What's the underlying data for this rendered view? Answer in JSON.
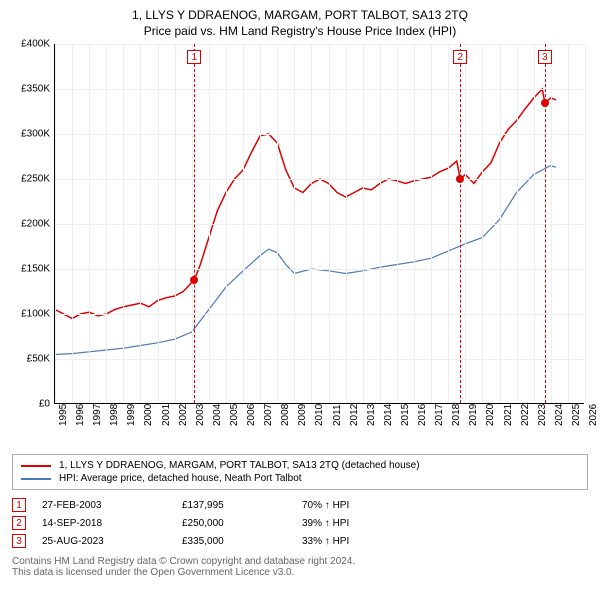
{
  "title": "1, LLYS Y DDRAENOG, MARGAM, PORT TALBOT, SA13 2TQ",
  "subtitle": "Price paid vs. HM Land Registry's House Price Index (HPI)",
  "chart": {
    "type": "line",
    "background_color": "#ffffff",
    "grid_color": "#eeeeee",
    "axis_color": "#000000",
    "ylim": [
      0,
      400000
    ],
    "ytick_step": 50000,
    "yticks_labels": [
      "£0",
      "£50K",
      "£100K",
      "£150K",
      "£200K",
      "£250K",
      "£300K",
      "£350K",
      "£400K"
    ],
    "x_years": [
      1995,
      1996,
      1997,
      1998,
      1999,
      2000,
      2001,
      2002,
      2003,
      2004,
      2005,
      2006,
      2007,
      2008,
      2009,
      2010,
      2011,
      2012,
      2013,
      2014,
      2015,
      2016,
      2017,
      2018,
      2019,
      2020,
      2021,
      2022,
      2023,
      2024,
      2025,
      2026
    ],
    "series": [
      {
        "name": "1, LLYS Y DDRAENOG, MARGAM, PORT TALBOT, SA13 2TQ (detached house)",
        "color": "#dd0000",
        "line_width": 1.5,
        "data": [
          [
            1995.0,
            105000
          ],
          [
            1995.5,
            100000
          ],
          [
            1996.0,
            95000
          ],
          [
            1996.5,
            100000
          ],
          [
            1997.0,
            102000
          ],
          [
            1997.5,
            98000
          ],
          [
            1998.0,
            100000
          ],
          [
            1998.5,
            105000
          ],
          [
            1999.0,
            108000
          ],
          [
            1999.5,
            110000
          ],
          [
            2000.0,
            112000
          ],
          [
            2000.5,
            108000
          ],
          [
            2001.0,
            115000
          ],
          [
            2001.5,
            118000
          ],
          [
            2002.0,
            120000
          ],
          [
            2002.5,
            125000
          ],
          [
            2003.0,
            135000
          ],
          [
            2003.15,
            137995
          ],
          [
            2003.5,
            155000
          ],
          [
            2004.0,
            185000
          ],
          [
            2004.5,
            215000
          ],
          [
            2005.0,
            235000
          ],
          [
            2005.5,
            250000
          ],
          [
            2006.0,
            260000
          ],
          [
            2006.5,
            280000
          ],
          [
            2007.0,
            298000
          ],
          [
            2007.5,
            300000
          ],
          [
            2008.0,
            290000
          ],
          [
            2008.5,
            260000
          ],
          [
            2009.0,
            240000
          ],
          [
            2009.5,
            235000
          ],
          [
            2010.0,
            245000
          ],
          [
            2010.5,
            250000
          ],
          [
            2011.0,
            245000
          ],
          [
            2011.5,
            235000
          ],
          [
            2012.0,
            230000
          ],
          [
            2012.5,
            235000
          ],
          [
            2013.0,
            240000
          ],
          [
            2013.5,
            238000
          ],
          [
            2014.0,
            245000
          ],
          [
            2014.5,
            250000
          ],
          [
            2015.0,
            248000
          ],
          [
            2015.5,
            245000
          ],
          [
            2016.0,
            248000
          ],
          [
            2016.5,
            250000
          ],
          [
            2017.0,
            252000
          ],
          [
            2017.5,
            258000
          ],
          [
            2018.0,
            262000
          ],
          [
            2018.5,
            270000
          ],
          [
            2018.7,
            250000
          ],
          [
            2019.0,
            255000
          ],
          [
            2019.5,
            245000
          ],
          [
            2020.0,
            258000
          ],
          [
            2020.5,
            268000
          ],
          [
            2021.0,
            290000
          ],
          [
            2021.5,
            305000
          ],
          [
            2022.0,
            315000
          ],
          [
            2022.5,
            328000
          ],
          [
            2023.0,
            340000
          ],
          [
            2023.5,
            350000
          ],
          [
            2023.65,
            335000
          ],
          [
            2024.0,
            340000
          ],
          [
            2024.3,
            338000
          ]
        ]
      },
      {
        "name": "HPI: Average price, detached house, Neath Port Talbot",
        "color": "#4a7ab8",
        "line_width": 1.2,
        "data": [
          [
            1995.0,
            55000
          ],
          [
            1996.0,
            56000
          ],
          [
            1997.0,
            58000
          ],
          [
            1998.0,
            60000
          ],
          [
            1999.0,
            62000
          ],
          [
            2000.0,
            65000
          ],
          [
            2001.0,
            68000
          ],
          [
            2002.0,
            72000
          ],
          [
            2003.0,
            80000
          ],
          [
            2004.0,
            105000
          ],
          [
            2005.0,
            130000
          ],
          [
            2006.0,
            148000
          ],
          [
            2007.0,
            165000
          ],
          [
            2007.5,
            172000
          ],
          [
            2008.0,
            168000
          ],
          [
            2008.5,
            155000
          ],
          [
            2009.0,
            145000
          ],
          [
            2010.0,
            150000
          ],
          [
            2011.0,
            148000
          ],
          [
            2012.0,
            145000
          ],
          [
            2013.0,
            148000
          ],
          [
            2014.0,
            152000
          ],
          [
            2015.0,
            155000
          ],
          [
            2016.0,
            158000
          ],
          [
            2017.0,
            162000
          ],
          [
            2018.0,
            170000
          ],
          [
            2019.0,
            178000
          ],
          [
            2020.0,
            185000
          ],
          [
            2021.0,
            205000
          ],
          [
            2022.0,
            235000
          ],
          [
            2023.0,
            255000
          ],
          [
            2024.0,
            265000
          ],
          [
            2024.3,
            263000
          ]
        ]
      }
    ],
    "markers": [
      {
        "num": "1",
        "year": 2003.15,
        "price": 137995,
        "color": "#dd0000"
      },
      {
        "num": "2",
        "year": 2018.7,
        "price": 250000,
        "color": "#dd0000"
      },
      {
        "num": "3",
        "year": 2023.65,
        "price": 335000,
        "color": "#dd0000"
      }
    ]
  },
  "legend": {
    "items": [
      {
        "color": "#dd0000",
        "label": "1, LLYS Y DDRAENOG, MARGAM, PORT TALBOT, SA13 2TQ (detached house)"
      },
      {
        "color": "#4a7ab8",
        "label": "HPI: Average price, detached house, Neath Port Talbot"
      }
    ]
  },
  "sales": [
    {
      "num": "1",
      "date": "27-FEB-2003",
      "price": "£137,995",
      "pct": "70% ↑ HPI"
    },
    {
      "num": "2",
      "date": "14-SEP-2018",
      "price": "£250,000",
      "pct": "39% ↑ HPI"
    },
    {
      "num": "3",
      "date": "25-AUG-2023",
      "price": "£335,000",
      "pct": "33% ↑ HPI"
    }
  ],
  "footer": {
    "line1": "Contains HM Land Registry data © Crown copyright and database right 2024.",
    "line2": "This data is licensed under the Open Government Licence v3.0."
  }
}
